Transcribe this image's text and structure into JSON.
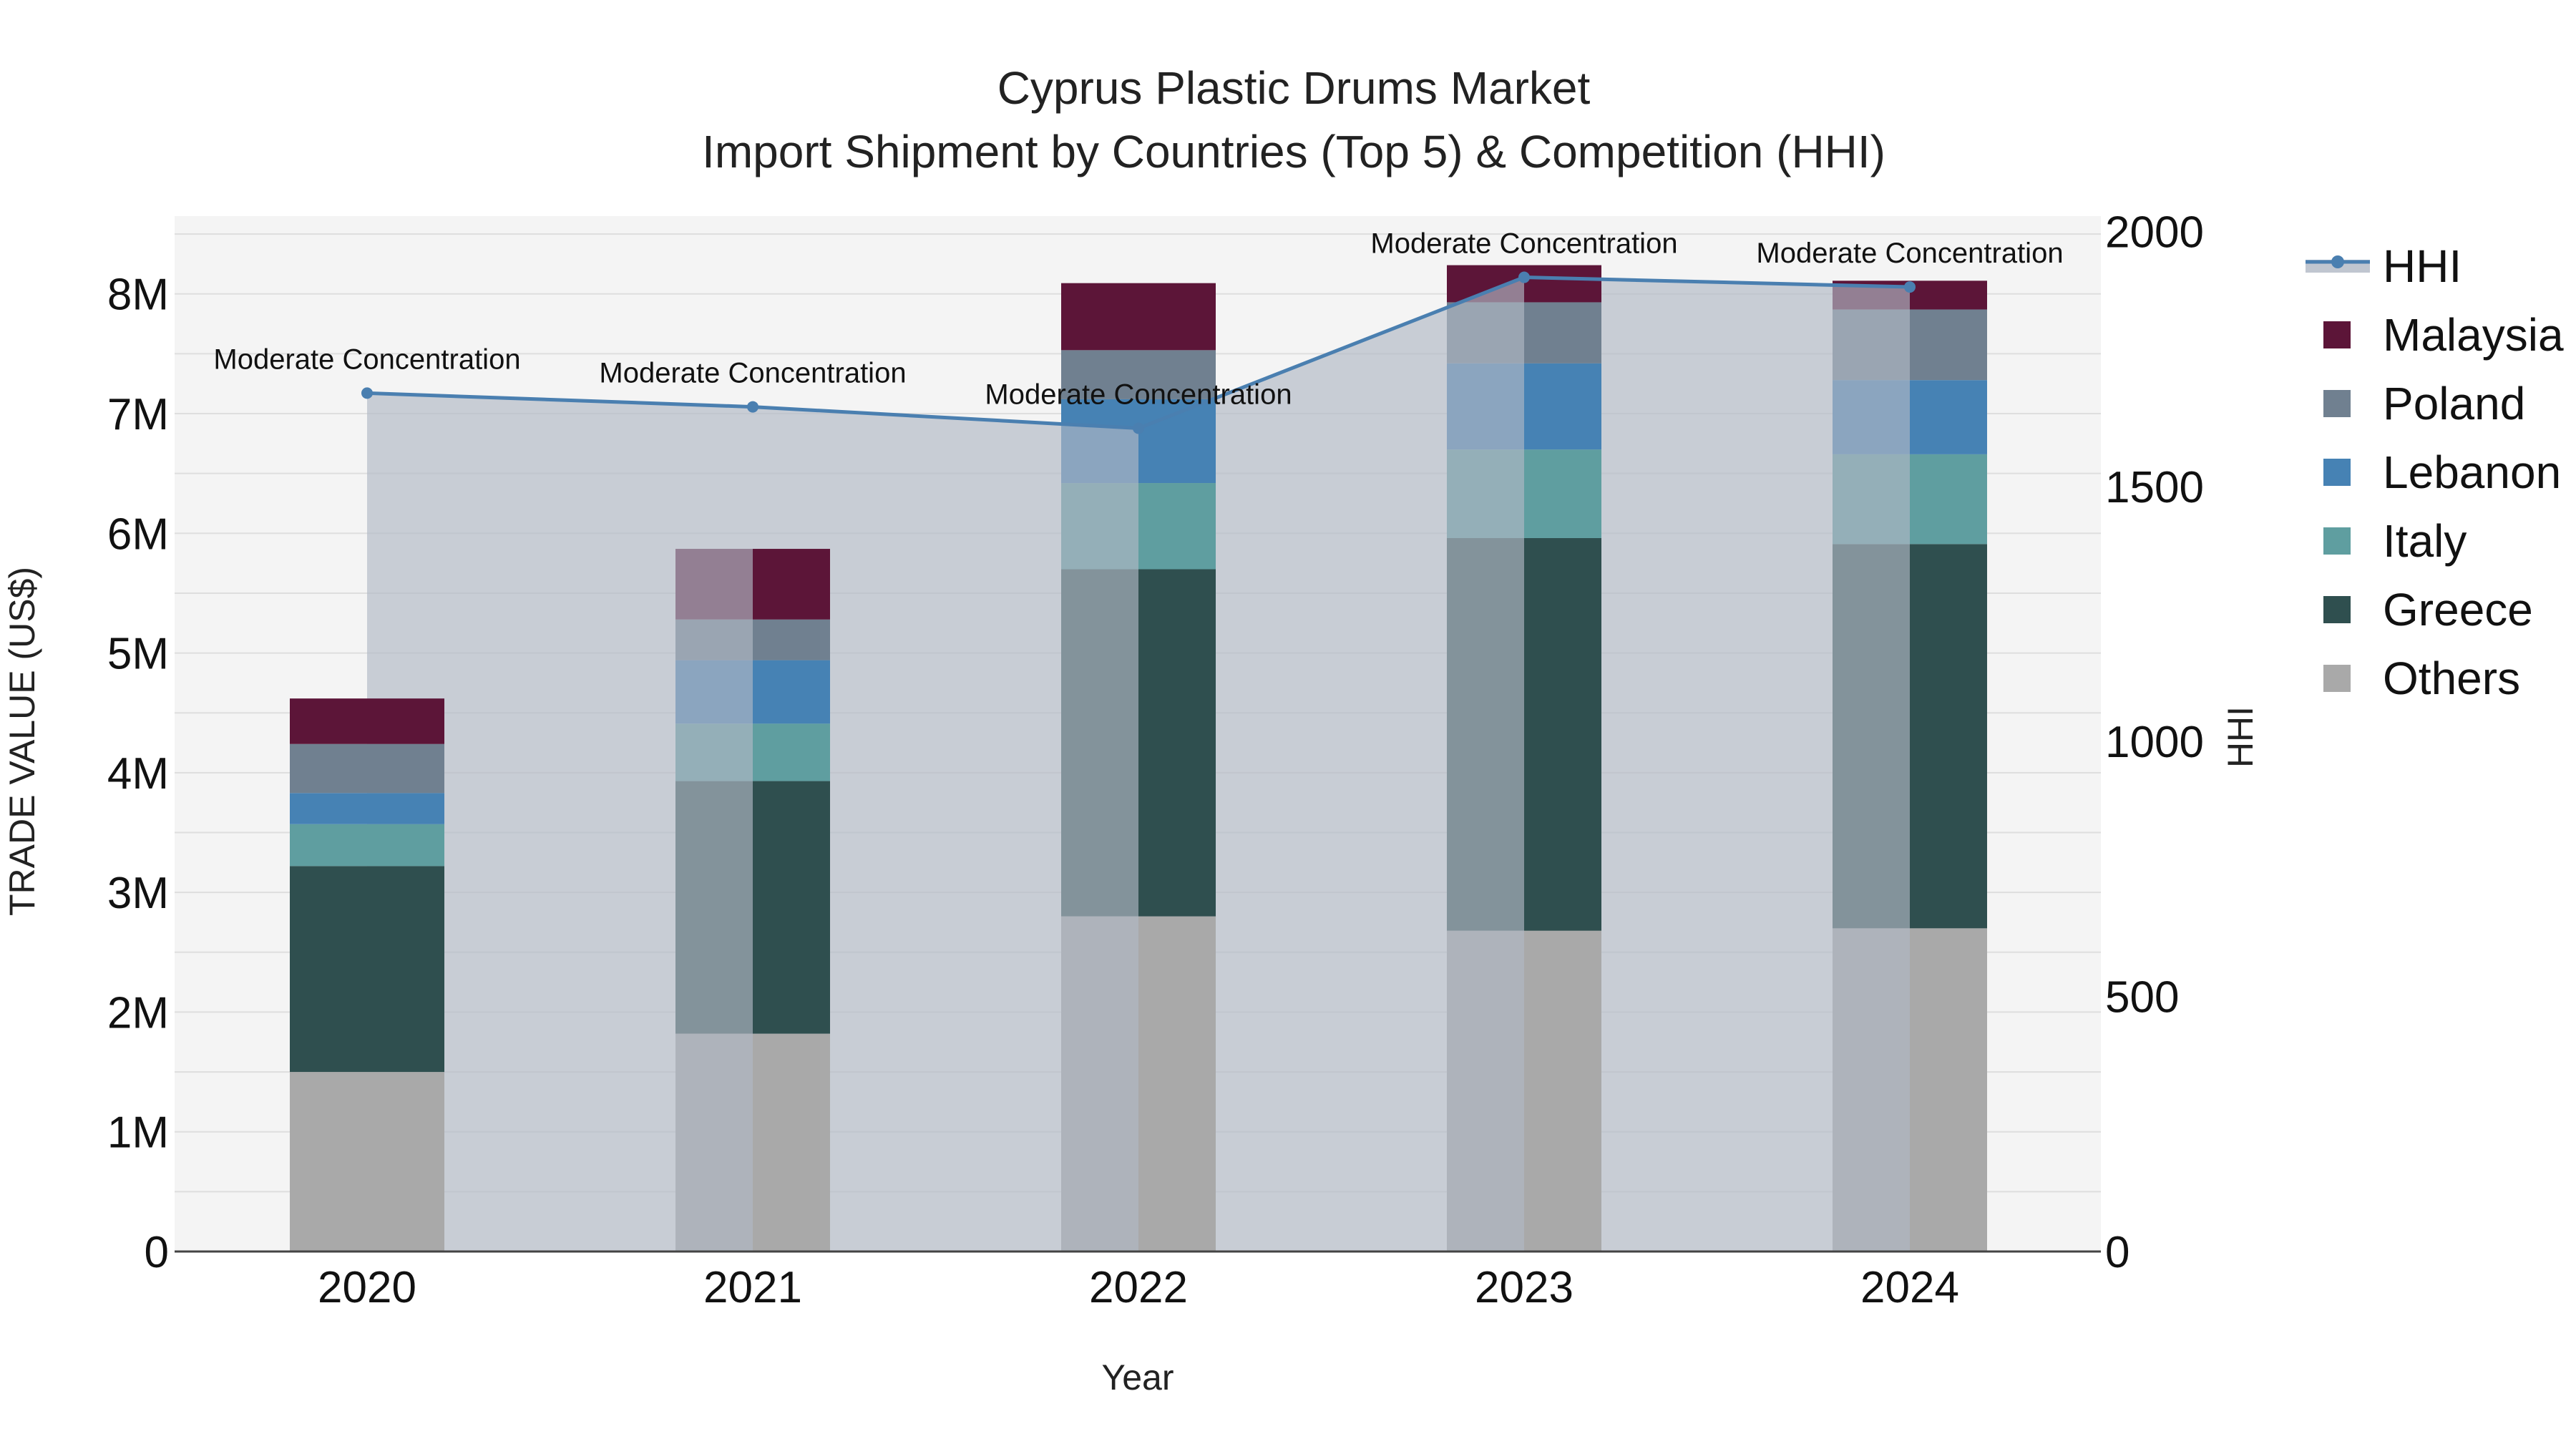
{
  "chart_data": {
    "type": "bar",
    "title": "Cyprus Plastic Drums Market",
    "subtitle": "Import Shipment by Countries (Top 5) & Competition (HHI)",
    "xlabel": "Year",
    "ylabel": "TRADE VALUE (US$)",
    "y2label": "HHI",
    "categories": [
      "2020",
      "2021",
      "2022",
      "2023",
      "2024"
    ],
    "ylim": [
      0,
      8650000
    ],
    "y2lim": [
      0,
      2030
    ],
    "yticks": [
      {
        "value": 0,
        "label": "0"
      },
      {
        "value": 1000000,
        "label": "1M"
      },
      {
        "value": 2000000,
        "label": "2M"
      },
      {
        "value": 3000000,
        "label": "3M"
      },
      {
        "value": 4000000,
        "label": "4M"
      },
      {
        "value": 5000000,
        "label": "5M"
      },
      {
        "value": 6000000,
        "label": "6M"
      },
      {
        "value": 7000000,
        "label": "7M"
      },
      {
        "value": 8000000,
        "label": "8M"
      }
    ],
    "y2ticks": [
      {
        "value": 0,
        "label": "0"
      },
      {
        "value": 500,
        "label": "500"
      },
      {
        "value": 1000,
        "label": "1000"
      },
      {
        "value": 1500,
        "label": "1500"
      },
      {
        "value": 2000,
        "label": "2000"
      }
    ],
    "series": [
      {
        "name": "Others",
        "color": "#a9a9a9",
        "values": [
          1500000,
          1820000,
          2800000,
          2680000,
          2700000
        ]
      },
      {
        "name": "Greece",
        "color": "#2f4f4f",
        "values": [
          1720000,
          2110000,
          2900000,
          3280000,
          3210000
        ]
      },
      {
        "name": "Italy",
        "color": "#5f9ea0",
        "values": [
          350000,
          480000,
          720000,
          740000,
          750000
        ]
      },
      {
        "name": "Lebanon",
        "color": "#4682b4",
        "values": [
          260000,
          530000,
          700000,
          720000,
          620000
        ]
      },
      {
        "name": "Poland",
        "color": "#708090",
        "values": [
          410000,
          340000,
          410000,
          510000,
          590000
        ]
      },
      {
        "name": "Malaysia",
        "color": "#5c1538",
        "values": [
          380000,
          590000,
          560000,
          310000,
          240000
        ]
      }
    ],
    "hhi": {
      "name": "HHI",
      "color": "#4a7fb0",
      "fill_color": "#b0b8c4",
      "values": [
        1683,
        1656,
        1614,
        1910,
        1891
      ],
      "annotations": [
        "Moderate Concentration",
        "Moderate Concentration",
        "Moderate Concentration",
        "Moderate Concentration",
        "Moderate Concentration"
      ]
    },
    "legend": [
      "HHI",
      "Malaysia",
      "Poland",
      "Lebanon",
      "Italy",
      "Greece",
      "Others"
    ]
  }
}
